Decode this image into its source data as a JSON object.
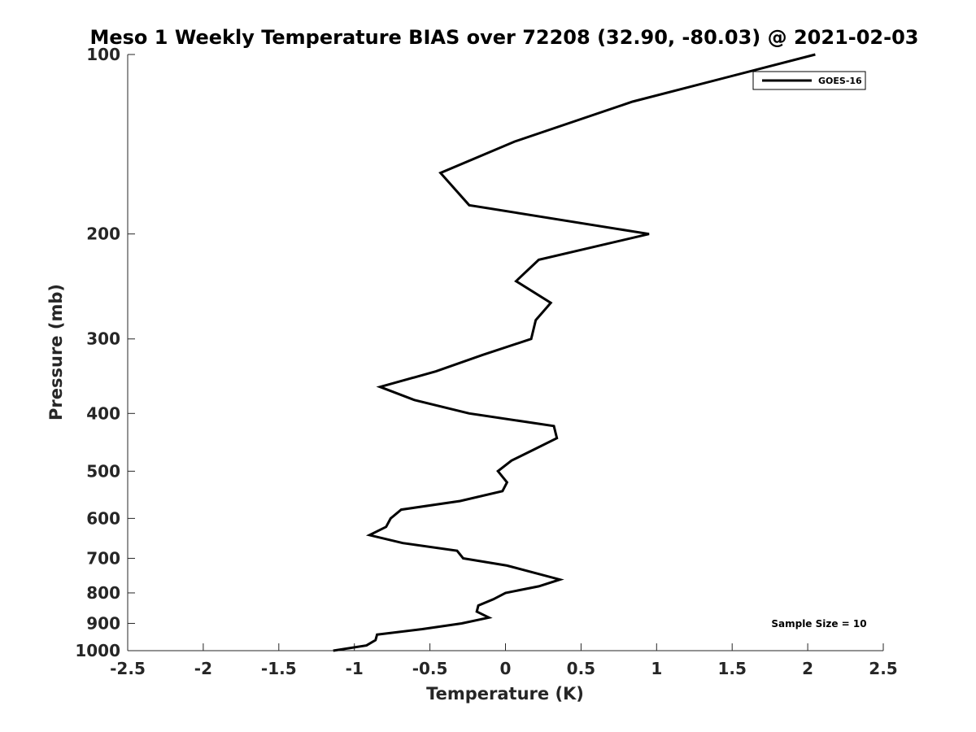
{
  "chart_data": {
    "type": "line",
    "title": "Meso 1 Weekly Temperature BIAS over 72208 (32.90, -80.03) @ 2021-02-03",
    "xlabel": "Temperature (K)",
    "ylabel": "Pressure (mb)",
    "xlim": [
      -2.5,
      2.5
    ],
    "ylim": [
      1000,
      100
    ],
    "y_scale": "log",
    "y_reversed": true,
    "grid": false,
    "x_ticks": [
      -2.5,
      -2,
      -1.5,
      -1,
      -0.5,
      0,
      0.5,
      1,
      1.5,
      2,
      2.5
    ],
    "x_tick_labels": [
      "-2.5",
      "-2",
      "-1.5",
      "-1",
      "-0.5",
      "0",
      "0.5",
      "1",
      "1.5",
      "2",
      "2.5"
    ],
    "y_ticks": [
      100,
      200,
      300,
      400,
      500,
      600,
      700,
      800,
      900,
      1000
    ],
    "y_tick_labels": [
      "100",
      "200",
      "300",
      "400",
      "500",
      "600",
      "700",
      "800",
      "900",
      "1000"
    ],
    "legend": {
      "position": "top-right",
      "entries": [
        "GOES-16"
      ]
    },
    "annotation": "Sample Size = 10",
    "series": [
      {
        "name": "GOES-16",
        "color": "#000000",
        "points": [
          {
            "x": 2.05,
            "y": 100
          },
          {
            "x": 0.84,
            "y": 120
          },
          {
            "x": 0.06,
            "y": 140
          },
          {
            "x": -0.43,
            "y": 158
          },
          {
            "x": -0.24,
            "y": 179
          },
          {
            "x": 0.95,
            "y": 200
          },
          {
            "x": 0.22,
            "y": 221
          },
          {
            "x": 0.07,
            "y": 240
          },
          {
            "x": 0.3,
            "y": 261
          },
          {
            "x": 0.2,
            "y": 279
          },
          {
            "x": 0.17,
            "y": 300
          },
          {
            "x": -0.15,
            "y": 319
          },
          {
            "x": -0.46,
            "y": 340
          },
          {
            "x": -0.83,
            "y": 361
          },
          {
            "x": -0.6,
            "y": 380
          },
          {
            "x": -0.24,
            "y": 400
          },
          {
            "x": 0.32,
            "y": 420
          },
          {
            "x": 0.34,
            "y": 440
          },
          {
            "x": 0.18,
            "y": 461
          },
          {
            "x": 0.04,
            "y": 480
          },
          {
            "x": -0.05,
            "y": 500
          },
          {
            "x": 0.01,
            "y": 522
          },
          {
            "x": -0.02,
            "y": 540
          },
          {
            "x": -0.3,
            "y": 561
          },
          {
            "x": -0.69,
            "y": 580
          },
          {
            "x": -0.76,
            "y": 600
          },
          {
            "x": -0.79,
            "y": 620
          },
          {
            "x": -0.9,
            "y": 640
          },
          {
            "x": -0.68,
            "y": 660
          },
          {
            "x": -0.32,
            "y": 680
          },
          {
            "x": -0.28,
            "y": 700
          },
          {
            "x": 0.01,
            "y": 720
          },
          {
            "x": 0.36,
            "y": 760
          },
          {
            "x": 0.22,
            "y": 780
          },
          {
            "x": 0.0,
            "y": 800
          },
          {
            "x": -0.08,
            "y": 820
          },
          {
            "x": -0.18,
            "y": 840
          },
          {
            "x": -0.19,
            "y": 860
          },
          {
            "x": -0.11,
            "y": 880
          },
          {
            "x": -0.29,
            "y": 900
          },
          {
            "x": -0.55,
            "y": 920
          },
          {
            "x": -0.85,
            "y": 940
          },
          {
            "x": -0.86,
            "y": 960
          },
          {
            "x": -0.92,
            "y": 980
          },
          {
            "x": -1.14,
            "y": 1000
          }
        ]
      }
    ]
  }
}
